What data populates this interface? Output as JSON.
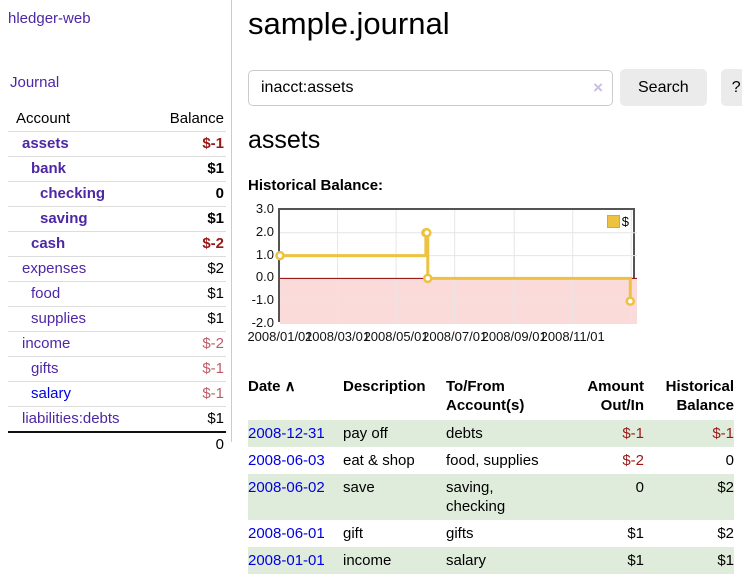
{
  "app": {
    "title": "hledger-web",
    "nav_journal": "Journal"
  },
  "sidebar": {
    "columns": {
      "account": "Account",
      "balance": "Balance"
    },
    "rows": [
      {
        "name": "assets",
        "balance": "$-1",
        "indent": 0,
        "bold": true,
        "neg": "strong",
        "link": "purple"
      },
      {
        "name": "bank",
        "balance": "$1",
        "indent": 1,
        "bold": true,
        "neg": "",
        "link": "purple"
      },
      {
        "name": "checking",
        "balance": "0",
        "indent": 2,
        "bold": true,
        "neg": "",
        "link": "purple"
      },
      {
        "name": "saving",
        "balance": "$1",
        "indent": 2,
        "bold": true,
        "neg": "",
        "link": "purple"
      },
      {
        "name": "cash",
        "balance": "$-2",
        "indent": 1,
        "bold": true,
        "neg": "strong",
        "link": "purple"
      },
      {
        "name": "expenses",
        "balance": "$2",
        "indent": 0,
        "bold": false,
        "neg": "",
        "link": "purple"
      },
      {
        "name": "food",
        "balance": "$1",
        "indent": 1,
        "bold": false,
        "neg": "",
        "link": "purple"
      },
      {
        "name": "supplies",
        "balance": "$1",
        "indent": 1,
        "bold": false,
        "neg": "",
        "link": "purple"
      },
      {
        "name": "income",
        "balance": "$-2",
        "indent": 0,
        "bold": false,
        "neg": "soft",
        "link": "purple"
      },
      {
        "name": "gifts",
        "balance": "$-1",
        "indent": 1,
        "bold": false,
        "neg": "soft",
        "link": "purple"
      },
      {
        "name": "salary",
        "balance": "$-1",
        "indent": 1,
        "bold": false,
        "neg": "soft",
        "link": "blue"
      },
      {
        "name": "liabilities:debts",
        "balance": "$1",
        "indent": 0,
        "bold": false,
        "neg": "",
        "link": "purple"
      }
    ],
    "total": "0"
  },
  "main": {
    "title": "sample.journal",
    "search": {
      "value": "inacct:assets",
      "clear_icon": "×",
      "button": "Search",
      "help": "?"
    },
    "account_heading": "assets",
    "chart_label": "Historical Balance:"
  },
  "chart_data": {
    "type": "line",
    "step": true,
    "title": "Historical Balance:",
    "legend": "$",
    "legend_position": "top-right",
    "grid": true,
    "ylim": [
      -2,
      3
    ],
    "y_ticks": [
      3.0,
      2.0,
      1.0,
      0.0,
      -1.0,
      -2.0
    ],
    "y_tick_labels": [
      "3.0",
      "2.0",
      "1.0",
      "0.0",
      "-1.0",
      "-2.0"
    ],
    "x_ticks": [
      {
        "day": 0,
        "label": "2008/01/01"
      },
      {
        "day": 60,
        "label": "2008/03/01"
      },
      {
        "day": 121,
        "label": "2008/05/01"
      },
      {
        "day": 182,
        "label": "2008/07/01"
      },
      {
        "day": 244,
        "label": "2008/09/01"
      },
      {
        "day": 305,
        "label": "2008/11/01"
      }
    ],
    "x_grid_extra_day": 366,
    "x_max_day": 372,
    "series": [
      {
        "name": "$",
        "color": "#edc240",
        "dates": [
          "2008-01-01",
          "2008-06-01",
          "2008-06-02",
          "2008-06-03",
          "2008-12-31"
        ],
        "x_days": [
          0,
          152,
          153,
          154,
          365
        ],
        "values": [
          1,
          2,
          2,
          0,
          -1
        ]
      }
    ],
    "negative_region_color": "#fbdada",
    "zero_line_color": "#8b0000",
    "gridline_color": "#e6e6e6"
  },
  "register": {
    "headers": [
      {
        "lines": [
          "Date"
        ],
        "align": "left",
        "sort": "∧"
      },
      {
        "lines": [
          "Description"
        ],
        "align": "left",
        "sort": ""
      },
      {
        "lines": [
          "To/From",
          "Account(s)"
        ],
        "align": "left",
        "sort": ""
      },
      {
        "lines": [
          "Amount",
          "Out/In"
        ],
        "align": "right",
        "sort": ""
      },
      {
        "lines": [
          "Historical",
          "Balance"
        ],
        "align": "right",
        "sort": ""
      }
    ],
    "rows": [
      {
        "date": "2008-12-31",
        "description": "pay off",
        "accounts": "debts",
        "amount": "$-1",
        "amount_neg": true,
        "balance": "$-1",
        "balance_neg": true
      },
      {
        "date": "2008-06-03",
        "description": "eat & shop",
        "accounts": "food, supplies",
        "amount": "$-2",
        "amount_neg": true,
        "balance": "0",
        "balance_neg": false
      },
      {
        "date": "2008-06-02",
        "description": "save",
        "accounts": "saving, checking",
        "amount": "0",
        "amount_neg": false,
        "balance": "$2",
        "balance_neg": false
      },
      {
        "date": "2008-06-01",
        "description": "gift",
        "accounts": "gifts",
        "amount": "$1",
        "amount_neg": false,
        "balance": "$2",
        "balance_neg": false
      },
      {
        "date": "2008-01-01",
        "description": "income",
        "accounts": "salary",
        "amount": "$1",
        "amount_neg": false,
        "balance": "$1",
        "balance_neg": false
      }
    ]
  }
}
